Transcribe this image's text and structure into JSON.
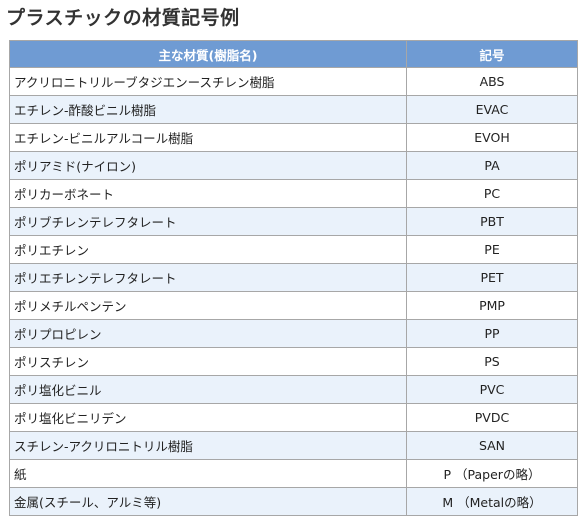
{
  "title": "プラスチックの材質記号例",
  "table": {
    "headers": [
      "主な材質(樹脂名)",
      "記号"
    ],
    "rows": [
      {
        "material": "アクリロニトリルーブタジエンースチレン樹脂",
        "symbol": "ABS"
      },
      {
        "material": "エチレン-酢酸ビニル樹脂",
        "symbol": "EVAC"
      },
      {
        "material": "エチレン-ビニルアルコール樹脂",
        "symbol": "EVOH"
      },
      {
        "material": "ポリアミド(ナイロン)",
        "symbol": "PA"
      },
      {
        "material": "ポリカーボネート",
        "symbol": "PC"
      },
      {
        "material": "ポリブチレンテレフタレート",
        "symbol": "PBT"
      },
      {
        "material": "ポリエチレン",
        "symbol": "PE"
      },
      {
        "material": "ポリエチレンテレフタレート",
        "symbol": "PET"
      },
      {
        "material": "ポリメチルペンテン",
        "symbol": "PMP"
      },
      {
        "material": "ポリプロピレン",
        "symbol": "PP"
      },
      {
        "material": "ポリスチレン",
        "symbol": "PS"
      },
      {
        "material": "ポリ塩化ビニル",
        "symbol": "PVC"
      },
      {
        "material": "ポリ塩化ビニリデン",
        "symbol": "PVDC"
      },
      {
        "material": "スチレン-アクリロニトリル樹脂",
        "symbol": "SAN"
      },
      {
        "material": "紙",
        "symbol": "P （Paperの略）"
      },
      {
        "material": "金属(スチール、アルミ等)",
        "symbol": "M （Metalの略）"
      }
    ]
  }
}
